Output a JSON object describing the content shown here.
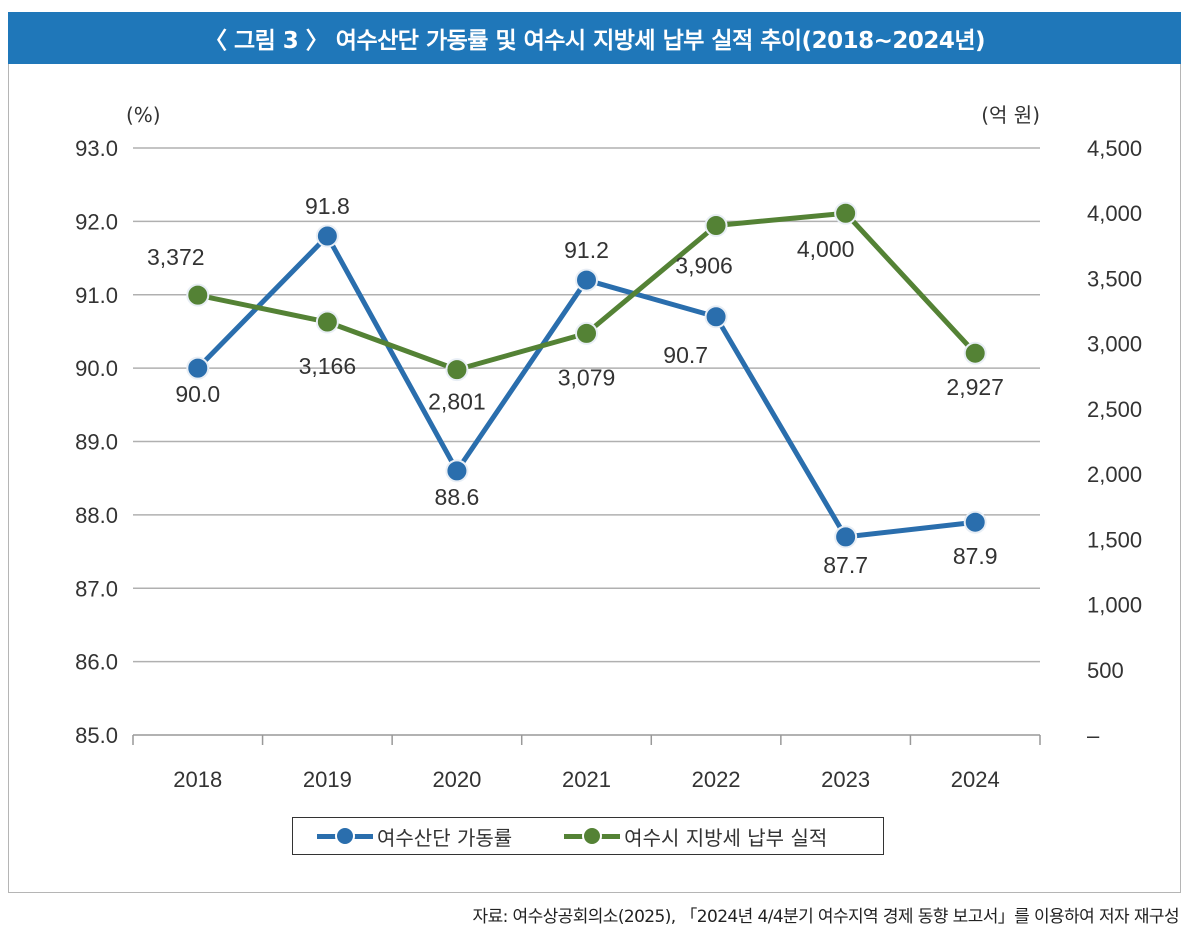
{
  "title": "〈 그림 3 〉 여수산단 가동률 및 여수시 지방세 납부 실적 추이(2018~2024년)",
  "source": "자료: 여수상공회의소(2025), 「2024년 4/4분기 여수지역 경제 동향 보고서」를 이용하여 저자 재구성",
  "colors": {
    "title_bg": "#1f77b9",
    "series_blue": "#2a6ead",
    "series_green": "#548235",
    "grid": "#b0b0b0"
  },
  "chart_data": {
    "type": "line",
    "title": "〈 그림 3 〉 여수산단 가동률 및 여수시 지방세 납부 실적 추이(2018~2024년)",
    "categories": [
      "2018",
      "2019",
      "2020",
      "2021",
      "2022",
      "2023",
      "2024"
    ],
    "y_left": {
      "unit_label": "(%)",
      "range": [
        85.0,
        93.0
      ],
      "ticks": [
        "93.0",
        "92.0",
        "91.0",
        "90.0",
        "89.0",
        "88.0",
        "87.0",
        "86.0",
        "85.0"
      ],
      "tick_values": [
        93,
        92,
        91,
        90,
        89,
        88,
        87,
        86,
        85
      ]
    },
    "y_right": {
      "unit_label": "(억 원)",
      "range": [
        0,
        4500
      ],
      "ticks": [
        "4,500",
        "4,000",
        "3,500",
        "3,000",
        "2,500",
        "2,000",
        "1,500",
        "1,000",
        "500",
        "–"
      ],
      "tick_values": [
        4500,
        4000,
        3500,
        3000,
        2500,
        2000,
        1500,
        1000,
        500,
        0
      ]
    },
    "grid": true,
    "legend_position": "bottom",
    "series": [
      {
        "name": "여수산단 가동률",
        "axis": "left",
        "color": "#2a6ead",
        "values": [
          90.0,
          91.8,
          88.6,
          91.2,
          90.7,
          87.7,
          87.9
        ],
        "labels": [
          "90.0",
          "91.8",
          "88.6",
          "91.2",
          "90.7",
          "87.7",
          "87.9"
        ],
        "label_pos": [
          "below",
          "above",
          "below",
          "above",
          "left-below",
          "below",
          "above"
        ]
      },
      {
        "name": "여수시 지방세 납부 실적",
        "axis": "right",
        "color": "#548235",
        "values": [
          3372,
          3166,
          2801,
          3079,
          3906,
          4000,
          2927
        ],
        "labels": [
          "3,372",
          "3,166",
          "2,801",
          "3,079",
          "3,906",
          "4,000",
          "2,927"
        ],
        "label_pos": [
          "below-left",
          "below",
          "below",
          "below",
          "below",
          "below-left",
          "below"
        ]
      }
    ]
  }
}
